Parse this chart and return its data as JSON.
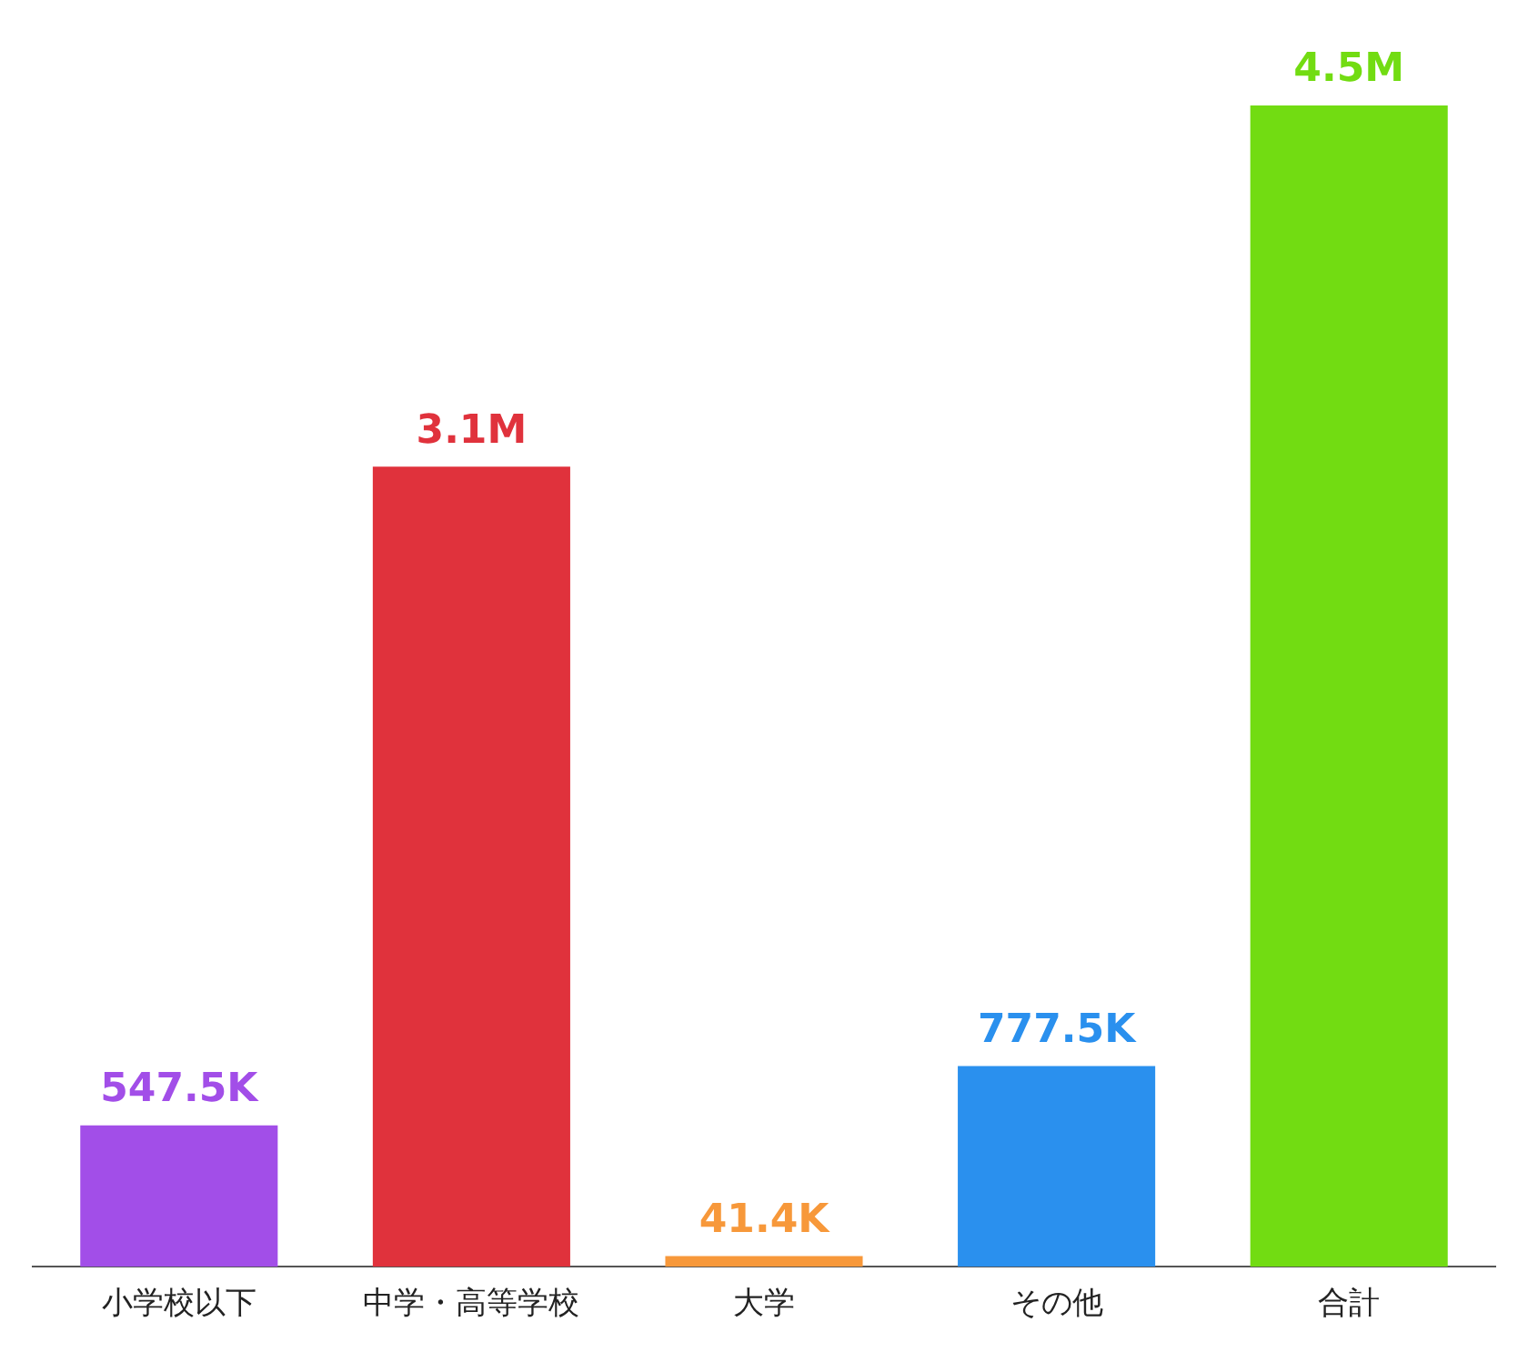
{
  "chart_data": {
    "type": "bar",
    "categories": [
      "小学校以下",
      "中学・高等学校",
      "大学",
      "その他",
      "合計"
    ],
    "values": [
      547500,
      3100000,
      41400,
      777500,
      4500000
    ],
    "value_labels": [
      "547.5K",
      "3.1M",
      "41.4K",
      "777.5K",
      "4.5M"
    ],
    "colors": [
      "#a24ee8",
      "#e0323c",
      "#f7983a",
      "#2a90ee",
      "#72dc12"
    ],
    "grid": false,
    "legend": false,
    "tick_labels": "x"
  }
}
